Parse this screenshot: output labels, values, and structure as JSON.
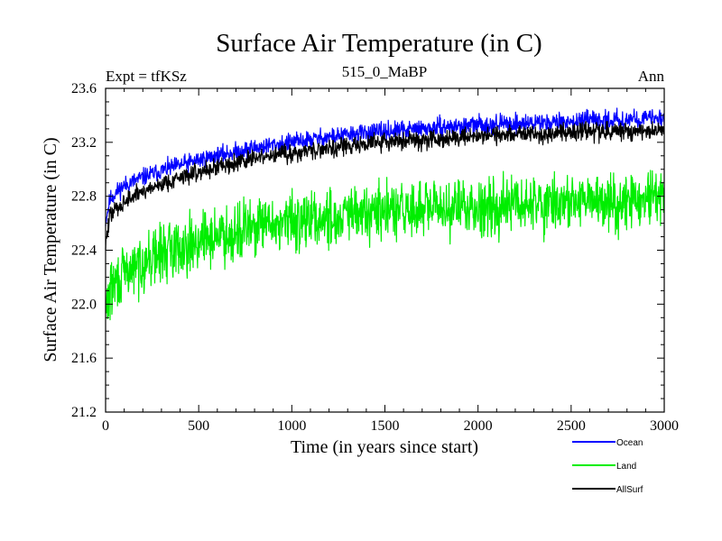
{
  "chart_data": {
    "type": "line",
    "title": "Surface Air Temperature (in C)",
    "subtitle_left": "Expt = tfKSz",
    "subtitle_center": "515_0_MaBP",
    "subtitle_right": "Ann",
    "xlabel": "Time (in years since start)",
    "ylabel": "Surface Air Temperature (in C)",
    "xlim": [
      0,
      3000
    ],
    "ylim": [
      21.2,
      23.6
    ],
    "xticks": [
      0,
      500,
      1000,
      1500,
      2000,
      2500,
      3000
    ],
    "yticks": [
      21.2,
      21.6,
      22.0,
      22.4,
      22.8,
      23.2,
      23.6
    ],
    "xtick_labels": [
      "0",
      "500",
      "1000",
      "1500",
      "2000",
      "2500",
      "3000"
    ],
    "ytick_labels": [
      "21.2",
      "21.6",
      "22.0",
      "22.4",
      "22.8",
      "23.2",
      "23.6"
    ],
    "grid": false,
    "legend_position": "bottom-right",
    "series": [
      {
        "name": "Ocean",
        "color": "#0000ff",
        "x": [
          0,
          25,
          50,
          100,
          200,
          300,
          400,
          500,
          600,
          700,
          800,
          900,
          1000,
          1200,
          1400,
          1600,
          1800,
          2000,
          2200,
          2400,
          2600,
          2800,
          3000
        ],
        "values": [
          22.62,
          22.78,
          22.82,
          22.88,
          22.94,
          22.99,
          23.03,
          23.07,
          23.1,
          23.13,
          23.16,
          23.18,
          23.2,
          23.24,
          23.27,
          23.29,
          23.31,
          23.33,
          23.34,
          23.35,
          23.36,
          23.37,
          23.38
        ]
      },
      {
        "name": "Land",
        "color": "#00ee00",
        "x": [
          0,
          25,
          50,
          100,
          200,
          300,
          400,
          500,
          600,
          700,
          800,
          900,
          1000,
          1200,
          1400,
          1600,
          1800,
          2000,
          2200,
          2400,
          2600,
          2800,
          3000
        ],
        "values": [
          21.95,
          22.1,
          22.15,
          22.22,
          22.31,
          22.38,
          22.43,
          22.47,
          22.51,
          22.54,
          22.57,
          22.59,
          22.61,
          22.64,
          22.67,
          22.69,
          22.71,
          22.73,
          22.74,
          22.75,
          22.76,
          22.77,
          22.78
        ]
      },
      {
        "name": "AllSurf",
        "color": "#000000",
        "x": [
          0,
          25,
          50,
          100,
          200,
          300,
          400,
          500,
          600,
          700,
          800,
          900,
          1000,
          1200,
          1400,
          1600,
          1800,
          2000,
          2200,
          2400,
          2600,
          2800,
          3000
        ],
        "values": [
          22.45,
          22.66,
          22.7,
          22.76,
          22.84,
          22.89,
          22.94,
          22.98,
          23.02,
          23.05,
          23.08,
          23.1,
          23.12,
          23.16,
          23.19,
          23.21,
          23.23,
          23.25,
          23.26,
          23.27,
          23.28,
          23.28,
          23.29
        ]
      }
    ]
  }
}
